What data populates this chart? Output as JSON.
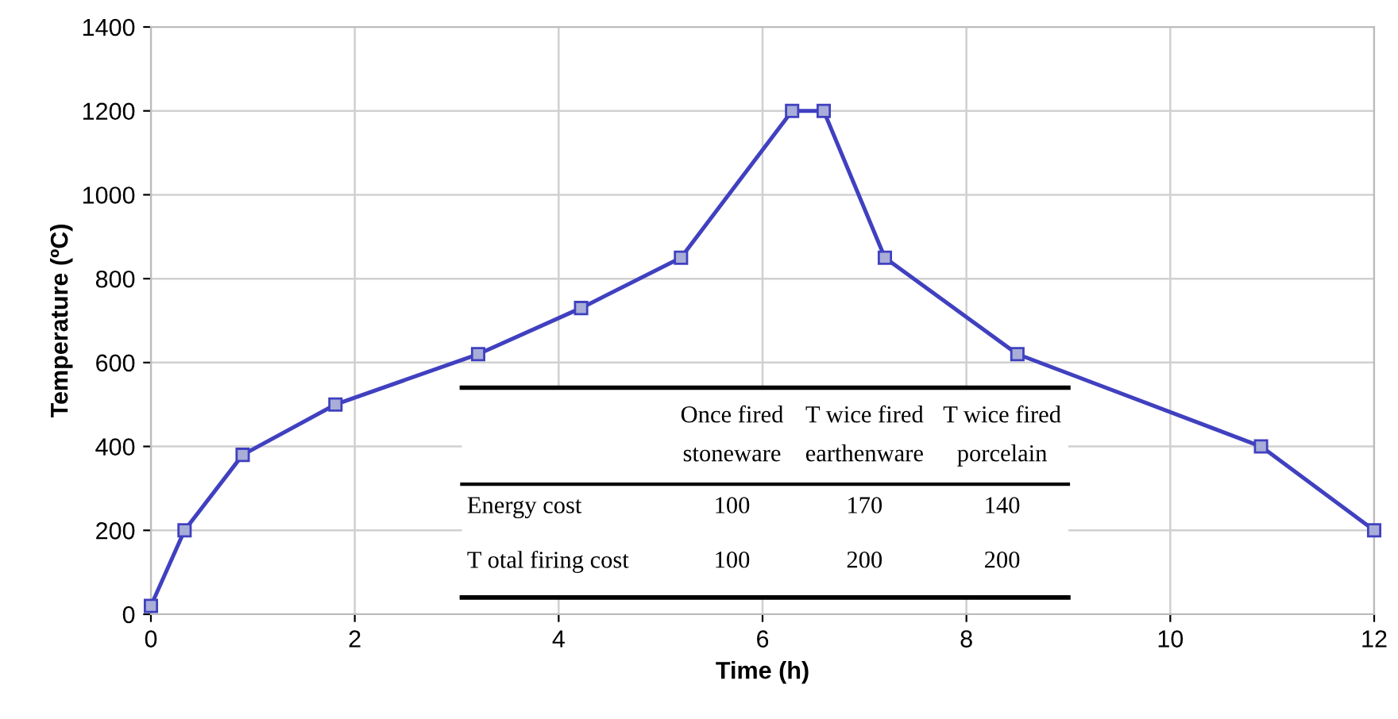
{
  "chart_data": {
    "type": "line",
    "xlabel": "Time (h)",
    "ylabel": "Temperature (ºC)",
    "x": [
      0,
      0.33,
      0.9,
      1.81,
      3.21,
      4.22,
      5.2,
      6.29,
      6.6,
      7.2,
      8.5,
      10.89,
      12
    ],
    "series": [
      {
        "color": "#4040c0",
        "values": [
          20,
          200,
          380,
          500,
          620,
          730,
          850,
          1200,
          1200,
          850,
          620,
          400,
          200
        ]
      }
    ],
    "xlim": [
      0,
      12
    ],
    "xticks": [
      0,
      2,
      4,
      6,
      8,
      10,
      12
    ],
    "ylim": [
      0,
      1400
    ],
    "yticks": [
      0,
      200,
      400,
      600,
      800,
      1000,
      1200,
      1400
    ],
    "grid": true,
    "marker": "square",
    "line_style": "solid",
    "annotations": [
      "Once fired\nstoneware",
      "T wice fired\nearthenware",
      "T wice fired\nporcelain",
      "Energy cost",
      "100",
      "170",
      "140",
      "T otal firing cost",
      "100",
      "200",
      "200"
    ]
  }
}
